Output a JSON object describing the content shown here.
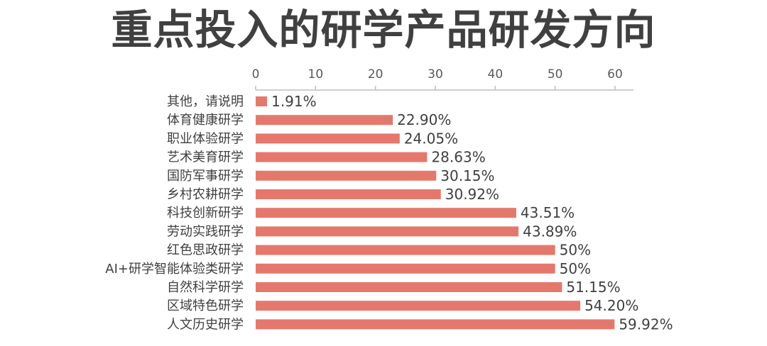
{
  "chart_data": {
    "type": "bar",
    "orientation": "horizontal",
    "title": "重点投入的研学产品研发方向",
    "xlim": [
      0,
      60
    ],
    "xticks": [
      0,
      10,
      20,
      30,
      40,
      50,
      60
    ],
    "x_axis_position": "top",
    "grid": false,
    "bar_color": "#E5786D",
    "categories": [
      "其他，请说明",
      "体育健康研学",
      "职业体验研学",
      "艺术美育研学",
      "国防军事研学",
      "乡村农耕研学",
      "科技创新研学",
      "劳动实践研学",
      "红色思政研学",
      "AI+研学智能体验类研学",
      "自然科学研学",
      "区域特色研学",
      "人文历史研学"
    ],
    "values": [
      1.91,
      22.9,
      24.05,
      28.63,
      30.15,
      30.92,
      43.51,
      43.89,
      50,
      50,
      51.15,
      54.2,
      59.92
    ],
    "data_labels": [
      "1.91%",
      "22.90%",
      "24.05%",
      "28.63%",
      "30.15%",
      "30.92%",
      "43.51%",
      "43.89%",
      "50%",
      "50%",
      "51.15%",
      "54.20%",
      "59.92%"
    ]
  }
}
